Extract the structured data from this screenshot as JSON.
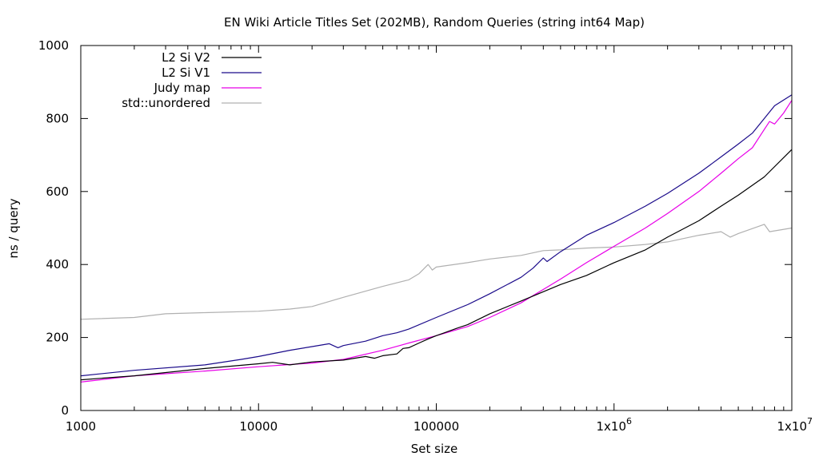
{
  "chart_data": {
    "type": "line",
    "title": "EN Wiki Article Titles Set (202MB), Random Queries (string int64 Map)",
    "xlabel": "Set size",
    "ylabel": "ns / query",
    "xscale": "log",
    "xlim": [
      1000,
      10000000
    ],
    "ylim": [
      0,
      1000
    ],
    "grid": false,
    "legend_position": "top-left",
    "xticks": [
      {
        "value": 1000,
        "base": "1000",
        "exp": ""
      },
      {
        "value": 10000,
        "base": "10000",
        "exp": ""
      },
      {
        "value": 100000,
        "base": "100000",
        "exp": ""
      },
      {
        "value": 1000000,
        "base": "1x10",
        "exp": "6"
      },
      {
        "value": 10000000,
        "base": "1x10",
        "exp": "7"
      }
    ],
    "yticks": [
      0,
      200,
      400,
      600,
      800,
      1000
    ],
    "series": [
      {
        "name": "L2 Si V2",
        "color": "#000000",
        "x": [
          1000,
          2000,
          5000,
          10000,
          12000,
          15000,
          20000,
          30000,
          40000,
          45000,
          50000,
          60000,
          65000,
          70000,
          80000,
          90000,
          100000,
          110000,
          130000,
          150000,
          200000,
          300000,
          500000,
          700000,
          1000000,
          1500000,
          2000000,
          3000000,
          4000000,
          5000000,
          7000000,
          10000000
        ],
        "y": [
          84,
          95,
          115,
          128,
          132,
          125,
          133,
          138,
          148,
          143,
          150,
          155,
          170,
          172,
          185,
          196,
          205,
          212,
          225,
          235,
          265,
          300,
          345,
          370,
          405,
          440,
          475,
          520,
          560,
          590,
          640,
          715
        ]
      },
      {
        "name": "L2 Si V1",
        "color": "#1a0a8a",
        "x": [
          1000,
          2000,
          5000,
          8000,
          10000,
          15000,
          20000,
          25000,
          28000,
          30000,
          40000,
          50000,
          60000,
          70000,
          100000,
          150000,
          200000,
          300000,
          350000,
          400000,
          420000,
          500000,
          700000,
          1000000,
          1500000,
          2000000,
          3000000,
          4000000,
          5000000,
          6000000,
          7000000,
          8000000,
          10000000
        ],
        "y": [
          95,
          110,
          125,
          140,
          148,
          165,
          175,
          183,
          172,
          178,
          190,
          205,
          213,
          223,
          255,
          290,
          320,
          365,
          390,
          418,
          408,
          435,
          480,
          515,
          560,
          595,
          650,
          695,
          730,
          760,
          800,
          835,
          865
        ]
      },
      {
        "name": "Judy map",
        "color": "#e800e8",
        "x": [
          1000,
          2000,
          5000,
          10000,
          20000,
          30000,
          50000,
          70000,
          100000,
          150000,
          200000,
          300000,
          500000,
          700000,
          1000000,
          1500000,
          2000000,
          3000000,
          4000000,
          5000000,
          6000000,
          7000000,
          7500000,
          8000000,
          9000000,
          10000000
        ],
        "y": [
          78,
          95,
          108,
          120,
          130,
          140,
          165,
          185,
          205,
          230,
          255,
          295,
          360,
          405,
          450,
          500,
          540,
          600,
          650,
          690,
          720,
          770,
          792,
          785,
          815,
          850
        ]
      },
      {
        "name": "std::unordered",
        "color": "#b0b0b0",
        "x": [
          1000,
          2000,
          3000,
          5000,
          10000,
          15000,
          20000,
          30000,
          50000,
          70000,
          80000,
          90000,
          95000,
          100000,
          150000,
          200000,
          300000,
          400000,
          500000,
          700000,
          1000000,
          1500000,
          2000000,
          3000000,
          4000000,
          4500000,
          5000000,
          7000000,
          7500000,
          10000000
        ],
        "y": [
          250,
          255,
          265,
          268,
          272,
          278,
          285,
          310,
          340,
          358,
          375,
          400,
          385,
          393,
          405,
          415,
          425,
          438,
          440,
          445,
          448,
          455,
          462,
          480,
          490,
          475,
          485,
          510,
          490,
          500
        ]
      }
    ]
  }
}
